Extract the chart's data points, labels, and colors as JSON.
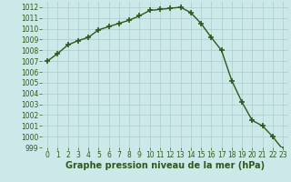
{
  "x": [
    0,
    1,
    2,
    3,
    4,
    5,
    6,
    7,
    8,
    9,
    10,
    11,
    12,
    13,
    14,
    15,
    16,
    17,
    18,
    19,
    20,
    21,
    22,
    23
  ],
  "y": [
    1007.0,
    1007.7,
    1008.5,
    1008.9,
    1009.2,
    1009.9,
    1010.2,
    1010.5,
    1010.8,
    1011.2,
    1011.7,
    1011.8,
    1011.9,
    1012.0,
    1011.5,
    1010.5,
    1009.2,
    1008.0,
    1005.2,
    1003.2,
    1001.5,
    1001.0,
    1000.0,
    998.8
  ],
  "line_color": "#2d5a1b",
  "marker_color": "#2d5a1b",
  "bg_color": "#cce8e8",
  "grid_color": "#aacccc",
  "xlabel": "Graphe pression niveau de la mer (hPa)",
  "xlabel_color": "#2d5a1b",
  "ylim": [
    999,
    1012.5
  ],
  "xlim": [
    -0.5,
    23.5
  ],
  "yticks": [
    999,
    1000,
    1001,
    1002,
    1003,
    1004,
    1005,
    1006,
    1007,
    1008,
    1009,
    1010,
    1011,
    1012
  ],
  "xticks": [
    0,
    1,
    2,
    3,
    4,
    5,
    6,
    7,
    8,
    9,
    10,
    11,
    12,
    13,
    14,
    15,
    16,
    17,
    18,
    19,
    20,
    21,
    22,
    23
  ],
  "tick_fontsize": 5.5,
  "xlabel_fontsize": 7,
  "marker_size": 4,
  "line_width": 1.0
}
